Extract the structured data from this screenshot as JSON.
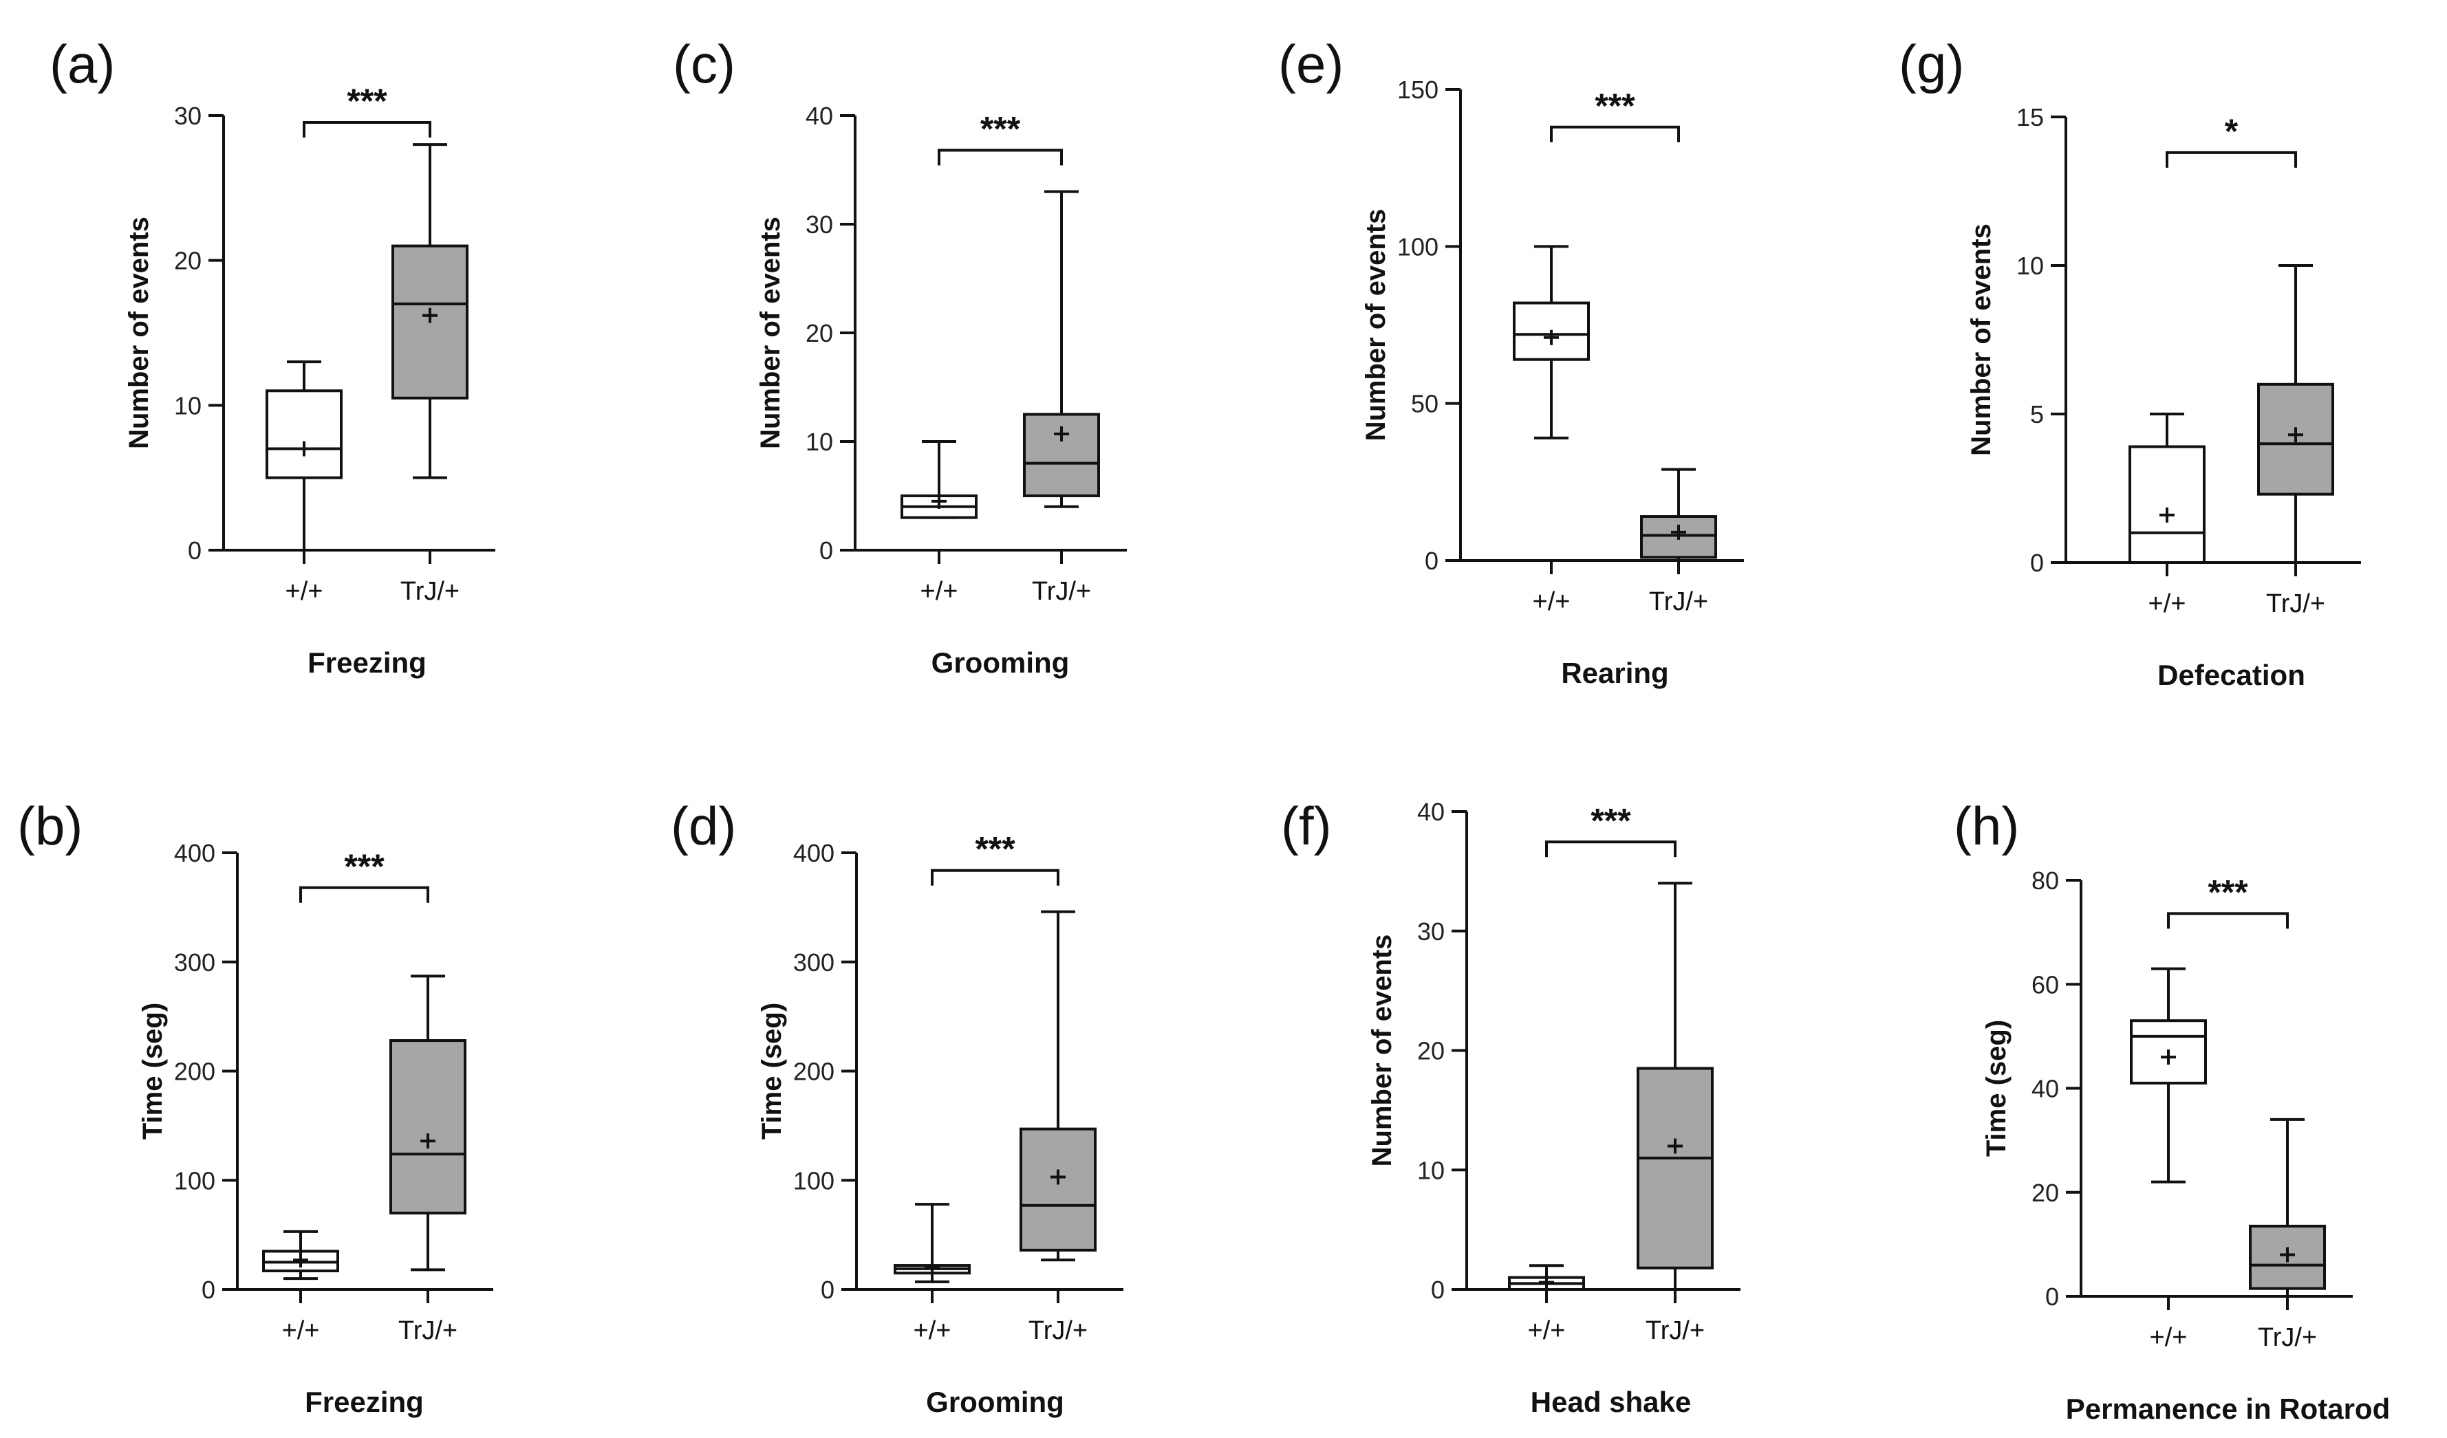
{
  "colors": {
    "wildtype_fill": "#ffffff",
    "mutant_fill": "#a6a6a6",
    "line": "#111111"
  },
  "chart_data": [
    {
      "panel": "(a)",
      "type": "box",
      "xlabel": "Freezing",
      "ylabel": "Number of events",
      "ylim": [
        0,
        30
      ],
      "yticks": [
        0,
        10,
        20,
        30
      ],
      "categories": [
        "+/+",
        "TrJ/+"
      ],
      "boxes": [
        {
          "min": 0,
          "q1": 5,
          "median": 7,
          "q3": 11,
          "max": 13,
          "mean": 7
        },
        {
          "min": 5,
          "q1": 10.5,
          "median": 17,
          "q3": 21,
          "max": 28,
          "mean": 16.2
        }
      ],
      "significance": "***"
    },
    {
      "panel": "(b)",
      "type": "box",
      "xlabel": "Freezing",
      "ylabel": "Time  (seg)",
      "ylim": [
        0,
        400
      ],
      "yticks": [
        0,
        100,
        200,
        300,
        400
      ],
      "categories": [
        "+/+",
        "TrJ/+"
      ],
      "boxes": [
        {
          "min": 10,
          "q1": 17,
          "median": 25,
          "q3": 35,
          "max": 53,
          "mean": 27
        },
        {
          "min": 18,
          "q1": 70,
          "median": 124,
          "q3": 228,
          "max": 287,
          "mean": 136
        }
      ],
      "significance": "***"
    },
    {
      "panel": "(c)",
      "type": "box",
      "xlabel": "Grooming",
      "ylabel": "Number of events",
      "ylim": [
        0,
        40
      ],
      "yticks": [
        0,
        10,
        20,
        30,
        40
      ],
      "categories": [
        "+/+",
        "TrJ/+"
      ],
      "boxes": [
        {
          "min": 3,
          "q1": 3,
          "median": 4,
          "q3": 5,
          "max": 10,
          "mean": 4.5
        },
        {
          "min": 4,
          "q1": 5,
          "median": 8,
          "q3": 12.5,
          "max": 33,
          "mean": 10.7
        }
      ],
      "significance": "***"
    },
    {
      "panel": "(d)",
      "type": "box",
      "xlabel": "Grooming",
      "ylabel": "Time  (seg)",
      "ylim": [
        0,
        400
      ],
      "yticks": [
        0,
        100,
        200,
        300,
        400
      ],
      "categories": [
        "+/+",
        "TrJ/+"
      ],
      "boxes": [
        {
          "min": 7,
          "q1": 15,
          "median": 19,
          "q3": 22,
          "max": 78,
          "mean": 20
        },
        {
          "min": 27,
          "q1": 36,
          "median": 77,
          "q3": 147,
          "max": 346,
          "mean": 103
        }
      ],
      "significance": "***"
    },
    {
      "panel": "(e)",
      "type": "box",
      "xlabel": "Rearing",
      "ylabel": "Number of events",
      "ylim": [
        0,
        150
      ],
      "yticks": [
        0,
        50,
        100,
        150
      ],
      "categories": [
        "+/+",
        "TrJ/+"
      ],
      "boxes": [
        {
          "min": 39,
          "q1": 64,
          "median": 72,
          "q3": 82,
          "max": 100,
          "mean": 71
        },
        {
          "min": 0,
          "q1": 1,
          "median": 8,
          "q3": 14,
          "max": 29,
          "mean": 9
        }
      ],
      "significance": "***"
    },
    {
      "panel": "(f)",
      "type": "box",
      "xlabel": "Head shake",
      "ylabel": "Number of events",
      "ylim": [
        0,
        40
      ],
      "yticks": [
        0,
        10,
        20,
        30,
        40
      ],
      "categories": [
        "+/+",
        "TrJ/+"
      ],
      "boxes": [
        {
          "min": 0,
          "q1": 0,
          "median": 0.5,
          "q3": 1,
          "max": 2,
          "mean": 0.6
        },
        {
          "min": 0,
          "q1": 1.8,
          "median": 11,
          "q3": 18.5,
          "max": 34,
          "mean": 12
        }
      ],
      "significance": "***"
    },
    {
      "panel": "(g)",
      "type": "box",
      "xlabel": "Defecation",
      "ylabel": "Number of events",
      "ylim": [
        0,
        15
      ],
      "yticks": [
        0,
        5,
        10,
        15
      ],
      "categories": [
        "+/+",
        "TrJ/+"
      ],
      "boxes": [
        {
          "min": 0,
          "q1": 0,
          "median": 1,
          "q3": 3.9,
          "max": 5,
          "mean": 1.6
        },
        {
          "min": 0,
          "q1": 2.3,
          "median": 4,
          "q3": 6,
          "max": 10,
          "mean": 4.3
        }
      ],
      "significance": "*"
    },
    {
      "panel": "(h)",
      "type": "box",
      "xlabel": "Permanence in Rotarod",
      "ylabel": "Time  (seg)",
      "ylim": [
        0,
        80
      ],
      "yticks": [
        0,
        20,
        40,
        60,
        80
      ],
      "categories": [
        "+/+",
        "TrJ/+"
      ],
      "boxes": [
        {
          "min": 22,
          "q1": 41,
          "median": 50,
          "q3": 53,
          "max": 63,
          "mean": 46
        },
        {
          "min": 0,
          "q1": 1.5,
          "median": 6,
          "q3": 13.5,
          "max": 34,
          "mean": 8
        }
      ],
      "significance": "***"
    }
  ]
}
